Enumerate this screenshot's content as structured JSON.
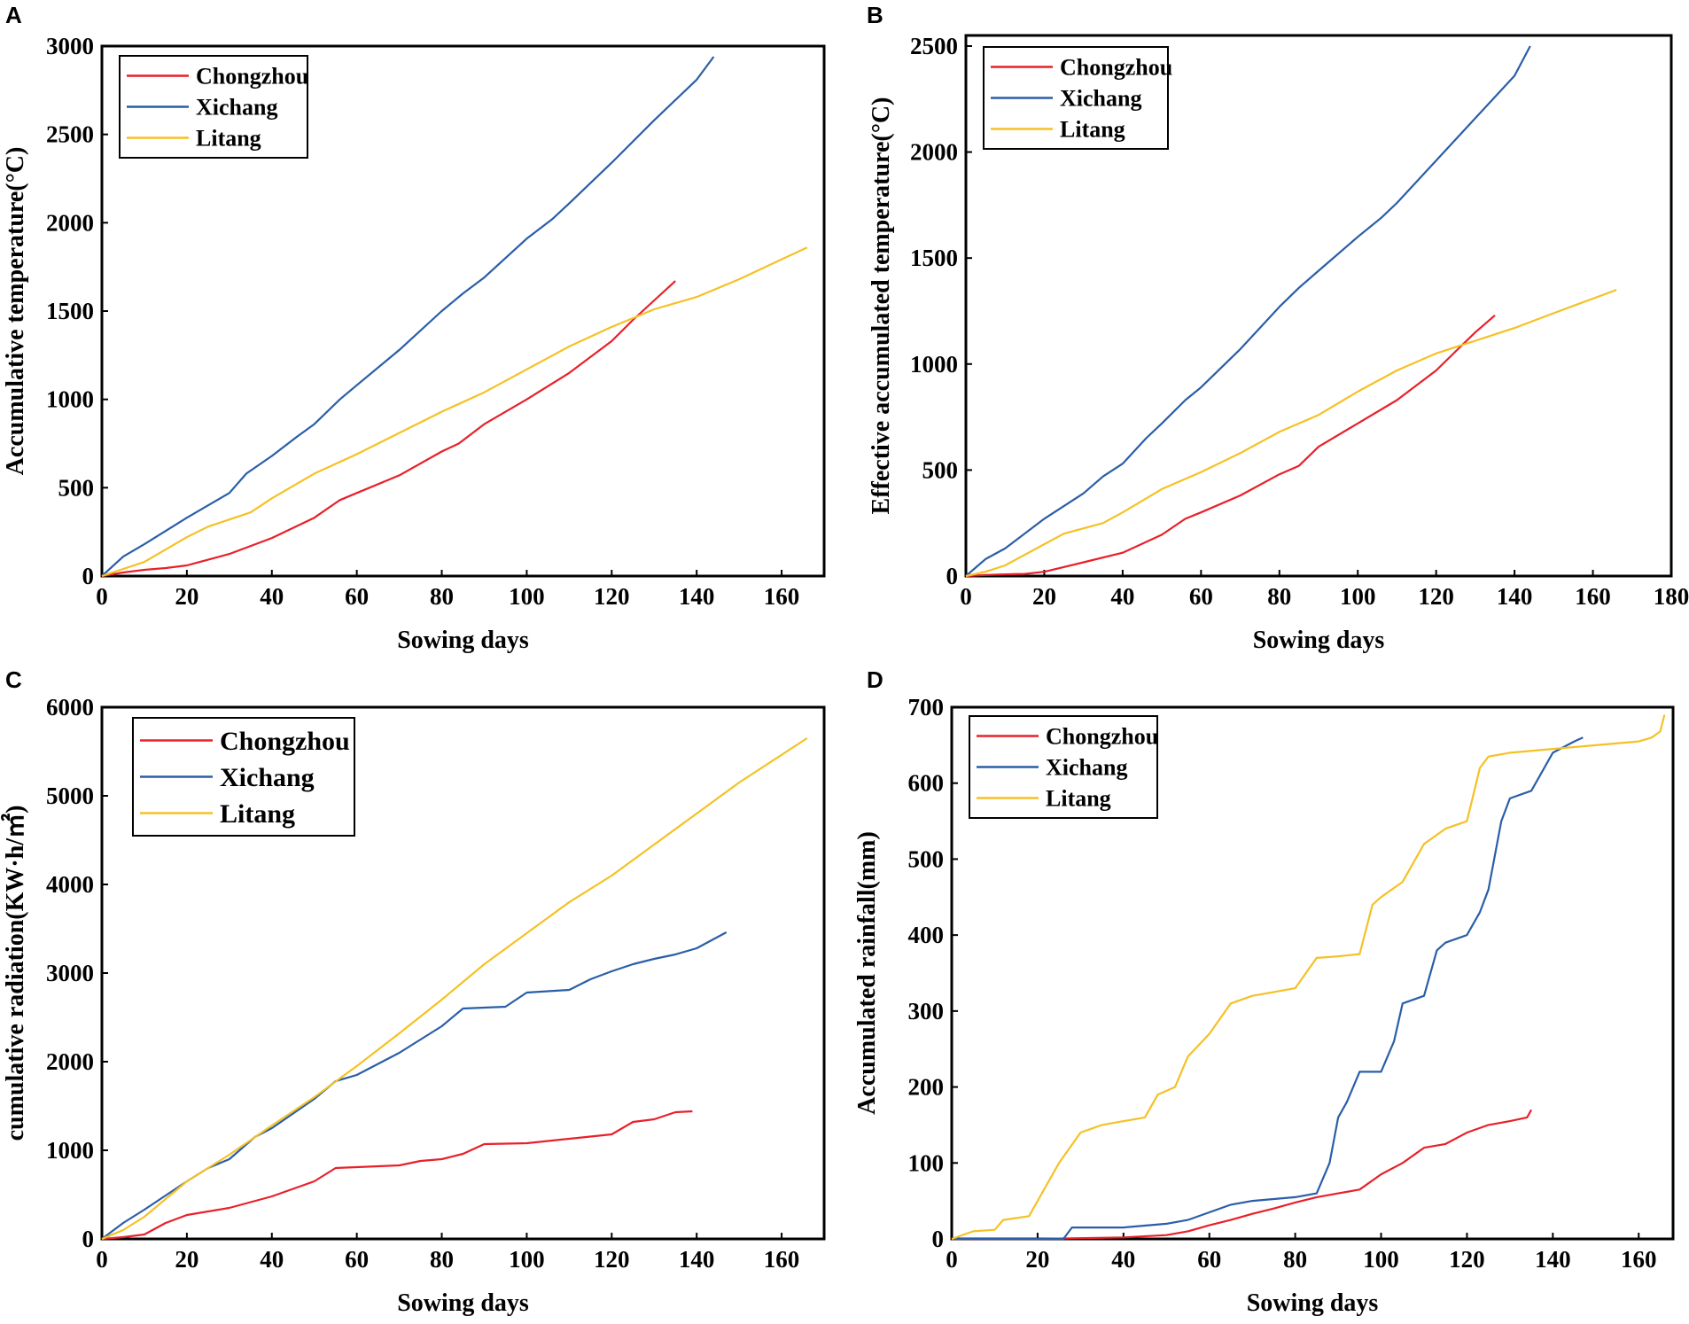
{
  "series_colors": {
    "Chongzhou": "#e8202a",
    "Xichang": "#2a5ea8",
    "Litang": "#f5c125"
  },
  "chart_data": [
    {
      "panel": "A",
      "type": "line",
      "xlabel": "Sowing days",
      "ylabel": "Accumulative temperature(°C)",
      "xlim": [
        0,
        170
      ],
      "ylim": [
        0,
        3000
      ],
      "xticks": [
        0,
        20,
        40,
        60,
        80,
        100,
        120,
        140,
        160
      ],
      "yticks": [
        0,
        500,
        1000,
        1500,
        2000,
        2500,
        3000
      ],
      "legend": [
        "Chongzhou",
        "Xichang",
        "Litang"
      ],
      "series": [
        {
          "name": "Chongzhou",
          "x": [
            0,
            5,
            10,
            15,
            20,
            30,
            40,
            50,
            56,
            60,
            70,
            80,
            84,
            90,
            100,
            110,
            120,
            125,
            130,
            135
          ],
          "y": [
            0,
            20,
            35,
            45,
            60,
            125,
            215,
            330,
            430,
            470,
            570,
            705,
            750,
            860,
            1000,
            1150,
            1330,
            1450,
            1560,
            1670
          ]
        },
        {
          "name": "Xichang",
          "x": [
            0,
            5,
            10,
            20,
            30,
            34,
            40,
            46,
            50,
            56,
            60,
            70,
            80,
            85,
            90,
            100,
            106,
            110,
            120,
            130,
            140,
            144
          ],
          "y": [
            0,
            110,
            180,
            330,
            470,
            580,
            680,
            790,
            860,
            1000,
            1080,
            1280,
            1500,
            1600,
            1690,
            1910,
            2020,
            2110,
            2340,
            2580,
            2810,
            2940
          ]
        },
        {
          "name": "Litang",
          "x": [
            0,
            5,
            10,
            20,
            25,
            35,
            40,
            50,
            60,
            70,
            80,
            90,
            100,
            110,
            120,
            125,
            130,
            140,
            150,
            166
          ],
          "y": [
            0,
            40,
            80,
            220,
            280,
            360,
            440,
            580,
            690,
            810,
            930,
            1040,
            1170,
            1300,
            1410,
            1460,
            1510,
            1580,
            1680,
            1860
          ]
        }
      ]
    },
    {
      "panel": "B",
      "type": "line",
      "xlabel": "Sowing days",
      "ylabel": "Effective accumulated temperature(°C)",
      "xlim": [
        0,
        180
      ],
      "ylim": [
        0,
        2550
      ],
      "xticks": [
        0,
        20,
        40,
        60,
        80,
        100,
        120,
        140,
        160,
        180
      ],
      "yticks": [
        0,
        500,
        1000,
        1500,
        2000,
        2500
      ],
      "legend": [
        "Chongzhou",
        "Xichang",
        "Litang"
      ],
      "series": [
        {
          "name": "Chongzhou",
          "x": [
            0,
            5,
            10,
            15,
            20,
            30,
            40,
            50,
            56,
            60,
            70,
            80,
            85,
            90,
            100,
            110,
            120,
            125,
            130,
            135
          ],
          "y": [
            0,
            5,
            8,
            10,
            20,
            65,
            110,
            195,
            270,
            300,
            380,
            480,
            520,
            610,
            720,
            830,
            970,
            1060,
            1150,
            1230
          ]
        },
        {
          "name": "Xichang",
          "x": [
            0,
            5,
            10,
            20,
            30,
            35,
            40,
            46,
            50,
            56,
            60,
            70,
            80,
            85,
            90,
            100,
            106,
            110,
            120,
            130,
            140,
            144
          ],
          "y": [
            0,
            80,
            130,
            270,
            390,
            470,
            530,
            650,
            720,
            830,
            890,
            1070,
            1270,
            1360,
            1440,
            1600,
            1690,
            1760,
            1960,
            2160,
            2360,
            2500
          ]
        },
        {
          "name": "Litang",
          "x": [
            0,
            5,
            10,
            20,
            25,
            35,
            40,
            50,
            60,
            70,
            80,
            90,
            100,
            110,
            120,
            125,
            130,
            140,
            150,
            166
          ],
          "y": [
            0,
            20,
            50,
            150,
            200,
            250,
            300,
            410,
            490,
            580,
            680,
            760,
            870,
            970,
            1050,
            1080,
            1110,
            1170,
            1240,
            1350
          ]
        }
      ]
    },
    {
      "panel": "C",
      "type": "line",
      "xlabel": "Sowing days",
      "ylabel": "cumulative radiation(KW·h/㎡)",
      "xlim": [
        0,
        170
      ],
      "ylim": [
        0,
        6000
      ],
      "xticks": [
        0,
        20,
        40,
        60,
        80,
        100,
        120,
        140,
        160
      ],
      "yticks": [
        0,
        1000,
        2000,
        3000,
        4000,
        5000,
        6000
      ],
      "legend": [
        "Chongzhou",
        "Xichang",
        "Litang"
      ],
      "series": [
        {
          "name": "Chongzhou",
          "x": [
            0,
            5,
            10,
            15,
            20,
            30,
            40,
            50,
            55,
            60,
            70,
            75,
            80,
            85,
            90,
            100,
            110,
            120,
            125,
            130,
            135,
            139
          ],
          "y": [
            0,
            20,
            50,
            180,
            270,
            350,
            480,
            650,
            800,
            810,
            830,
            880,
            900,
            960,
            1070,
            1080,
            1130,
            1180,
            1320,
            1350,
            1430,
            1440
          ]
        },
        {
          "name": "Xichang",
          "x": [
            0,
            5,
            10,
            20,
            25,
            30,
            36,
            40,
            50,
            55,
            60,
            70,
            80,
            85,
            95,
            100,
            110,
            115,
            120,
            125,
            130,
            135,
            140,
            147
          ],
          "y": [
            0,
            180,
            330,
            650,
            800,
            900,
            1150,
            1250,
            1580,
            1780,
            1850,
            2100,
            2400,
            2600,
            2620,
            2780,
            2810,
            2930,
            3020,
            3100,
            3160,
            3210,
            3280,
            3460
          ]
        },
        {
          "name": "Litang",
          "x": [
            0,
            5,
            10,
            20,
            30,
            40,
            50,
            60,
            70,
            80,
            90,
            100,
            110,
            120,
            130,
            140,
            150,
            166
          ],
          "y": [
            0,
            100,
            250,
            650,
            950,
            1280,
            1600,
            1950,
            2320,
            2700,
            3100,
            3450,
            3800,
            4100,
            4450,
            4800,
            5150,
            5650
          ]
        }
      ]
    },
    {
      "panel": "D",
      "type": "line",
      "xlabel": "Sowing days",
      "ylabel": "Accumulated rainfall(mm)",
      "xlim": [
        0,
        168
      ],
      "ylim": [
        0,
        700
      ],
      "xticks": [
        0,
        20,
        40,
        60,
        80,
        100,
        120,
        140,
        160
      ],
      "yticks": [
        0,
        100,
        200,
        300,
        400,
        500,
        600,
        700
      ],
      "legend": [
        "Chongzhou",
        "Xichang",
        "Litang"
      ],
      "series": [
        {
          "name": "Chongzhou",
          "x": [
            0,
            20,
            40,
            50,
            55,
            60,
            65,
            70,
            75,
            80,
            85,
            90,
            95,
            100,
            105,
            110,
            115,
            120,
            125,
            130,
            134,
            135
          ],
          "y": [
            0,
            0,
            2,
            5,
            10,
            18,
            25,
            33,
            40,
            48,
            55,
            60,
            65,
            85,
            100,
            120,
            125,
            140,
            150,
            155,
            160,
            170
          ]
        },
        {
          "name": "Xichang",
          "x": [
            0,
            26,
            28,
            40,
            50,
            55,
            60,
            65,
            70,
            80,
            85,
            88,
            90,
            92,
            95,
            100,
            103,
            105,
            110,
            113,
            115,
            120,
            123,
            125,
            128,
            130,
            135,
            140,
            145,
            147
          ],
          "y": [
            0,
            0,
            15,
            15,
            20,
            25,
            35,
            45,
            50,
            55,
            60,
            100,
            160,
            180,
            220,
            220,
            260,
            310,
            320,
            380,
            390,
            400,
            430,
            460,
            550,
            580,
            590,
            640,
            655,
            660
          ]
        },
        {
          "name": "Litang",
          "x": [
            0,
            5,
            10,
            12,
            18,
            22,
            25,
            30,
            35,
            40,
            45,
            48,
            52,
            55,
            60,
            65,
            70,
            75,
            80,
            85,
            90,
            95,
            98,
            100,
            105,
            110,
            115,
            120,
            123,
            125,
            130,
            140,
            150,
            160,
            163,
            165,
            166
          ],
          "y": [
            0,
            10,
            12,
            25,
            30,
            70,
            100,
            140,
            150,
            155,
            160,
            190,
            200,
            240,
            270,
            310,
            320,
            325,
            330,
            370,
            372,
            375,
            440,
            450,
            470,
            520,
            540,
            550,
            620,
            635,
            640,
            645,
            650,
            655,
            660,
            668,
            690
          ]
        }
      ]
    }
  ]
}
